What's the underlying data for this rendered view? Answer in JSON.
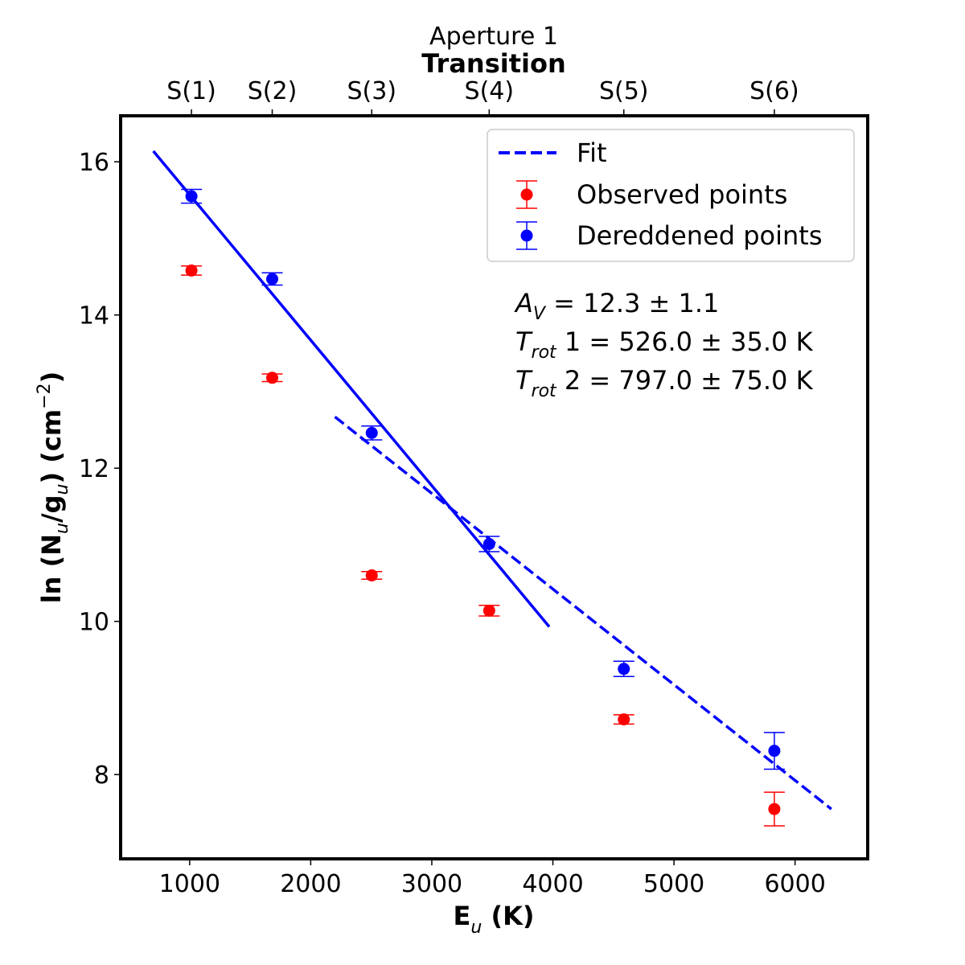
{
  "chart_data": {
    "type": "scatter",
    "title": "Aperture 1",
    "subtitle": "Transition",
    "xlabel": "E",
    "xlabel_sub": "u",
    "xlabel_unit": " (K)",
    "ylabel": "ln (N",
    "ylabel_sub1": "u",
    "ylabel_mid": "/g",
    "ylabel_sub2": "u",
    "ylabel_unit": ") (cm",
    "ylabel_sup": "−2",
    "ylabel_close": ")",
    "xlim": [
      430,
      6600
    ],
    "ylim": [
      6.9,
      16.6
    ],
    "xticks": [
      1000,
      2000,
      3000,
      4000,
      5000,
      6000
    ],
    "yticks": [
      8,
      10,
      12,
      14,
      16
    ],
    "top_ticks": [
      {
        "label": "S(1)",
        "x": 1015
      },
      {
        "label": "S(2)",
        "x": 1682
      },
      {
        "label": "S(3)",
        "x": 2504
      },
      {
        "label": "S(4)",
        "x": 3474
      },
      {
        "label": "S(5)",
        "x": 4586
      },
      {
        "label": "S(6)",
        "x": 5829
      }
    ],
    "series": [
      {
        "name": "Observed points",
        "color": "#ff0000",
        "points": [
          {
            "x": 1015,
            "y": 14.58,
            "err": 0.06
          },
          {
            "x": 1682,
            "y": 13.18,
            "err": 0.05
          },
          {
            "x": 2504,
            "y": 10.6,
            "err": 0.05
          },
          {
            "x": 3474,
            "y": 10.14,
            "err": 0.07
          },
          {
            "x": 4586,
            "y": 8.72,
            "err": 0.06
          },
          {
            "x": 5829,
            "y": 7.55,
            "err": 0.22
          }
        ]
      },
      {
        "name": "Dereddened points",
        "color": "#0000ff",
        "points": [
          {
            "x": 1015,
            "y": 15.55,
            "err": 0.09
          },
          {
            "x": 1682,
            "y": 14.47,
            "err": 0.08
          },
          {
            "x": 2504,
            "y": 12.46,
            "err": 0.09
          },
          {
            "x": 3474,
            "y": 11.01,
            "err": 0.1
          },
          {
            "x": 4586,
            "y": 9.38,
            "err": 0.1
          },
          {
            "x": 5829,
            "y": 8.31,
            "err": 0.24
          }
        ]
      }
    ],
    "fits": [
      {
        "style": "solid",
        "color": "#0000ff",
        "x": [
          700,
          3970
        ],
        "y": [
          16.14,
          9.93
        ]
      },
      {
        "style": "dashed",
        "color": "#0000ff",
        "x": [
          2200,
          6300
        ],
        "y": [
          12.67,
          7.55
        ]
      }
    ],
    "legend": {
      "placement": "top-right",
      "entries": [
        "Fit",
        "Observed points",
        "Dereddened points"
      ]
    },
    "annotations": {
      "av_sym": "A",
      "av_sub": "V",
      "av_rest": " = 12.3 ± 1.1",
      "t1_sym": "T",
      "t1_sub": "rot",
      "t1_rest": " 1 = 526.0 ± 35.0 K",
      "t2_sym": "T",
      "t2_sub": "rot",
      "t2_rest": " 2 = 797.0 ± 75.0 K"
    }
  }
}
